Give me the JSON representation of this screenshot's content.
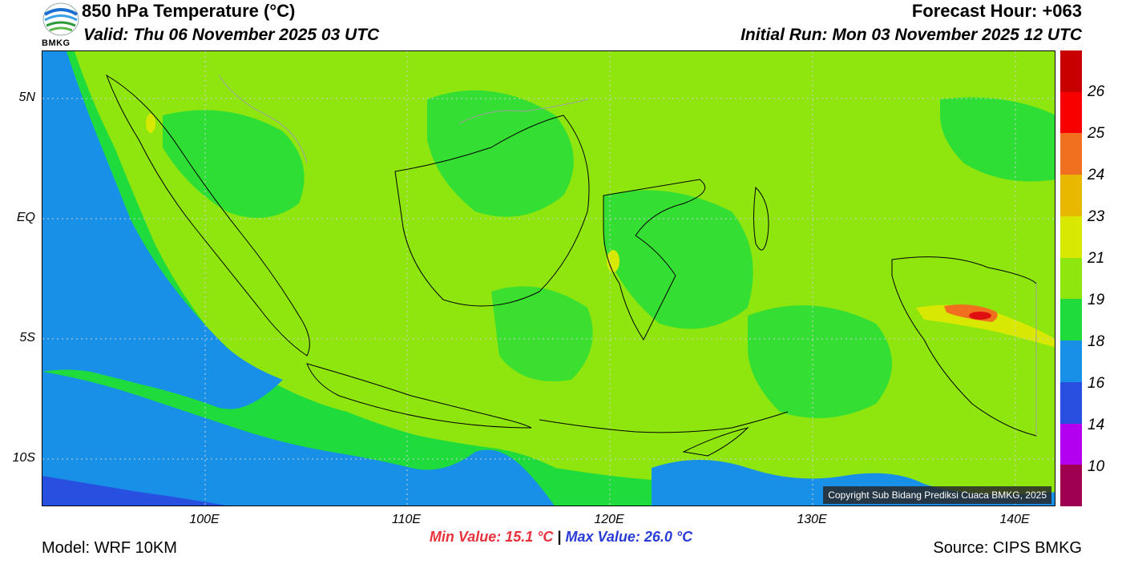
{
  "header": {
    "title": "850 hPa Temperature (°C)",
    "valid": "Valid: Thu 06 November 2025 03 UTC",
    "forecast_hour": "Forecast Hour: +063",
    "initial_run": "Initial Run: Mon 03 November 2025 12 UTC",
    "logo_text": "BMKG"
  },
  "axes": {
    "y_ticks": [
      "5N",
      "EQ",
      "5S",
      "10S"
    ],
    "x_ticks": [
      "100E",
      "110E",
      "120E",
      "130E",
      "140E"
    ]
  },
  "map": {
    "copyright": "Copyright Sub Bidang Prediksi Cuaca BMKG, 2025",
    "colors": {
      "background": "#8ee60e",
      "green": "#1fdc3c",
      "blue": "#1890e8",
      "dark_blue": "#2850e0",
      "orange": "#f07020",
      "red": "#e01010",
      "dark_red": "#c80000",
      "coast": "#000000",
      "border": "#a0a0a0"
    }
  },
  "colorbar": {
    "labels": [
      "26",
      "25",
      "24",
      "23",
      "21",
      "19",
      "18",
      "16",
      "14",
      "10"
    ],
    "colors": [
      "#c80000",
      "#f80000",
      "#f07020",
      "#e8b800",
      "#d8e800",
      "#8ee60e",
      "#1fdc3c",
      "#1890e8",
      "#2850e0",
      "#b400f0",
      "#a00050"
    ]
  },
  "footer": {
    "min_value": "Min Value: 15.1 °C",
    "separator": "|",
    "max_value": "Max Value: 26.0 °C",
    "model": "Model: WRF 10KM",
    "source": "Source: CIPS BMKG"
  }
}
